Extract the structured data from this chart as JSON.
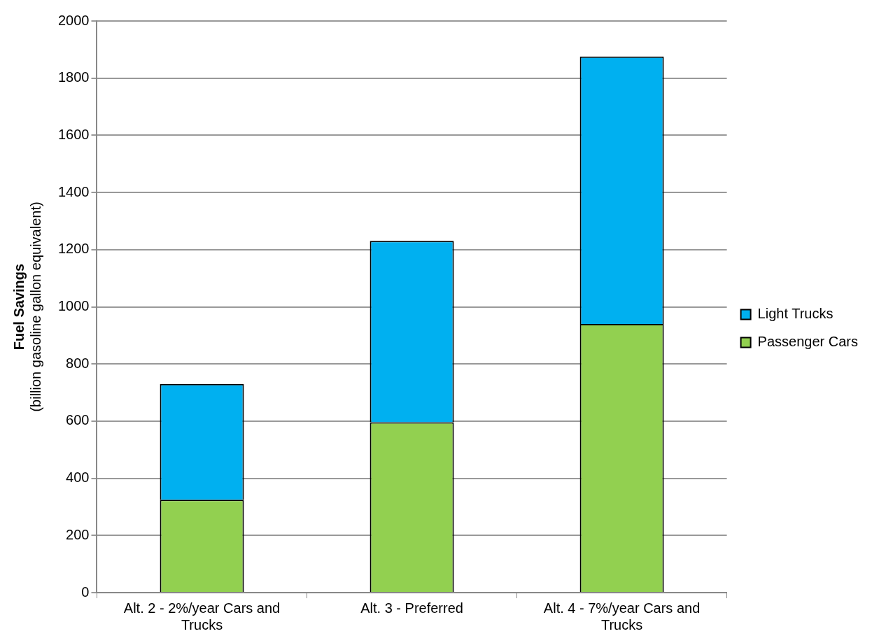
{
  "chart_data": {
    "type": "bar",
    "stacked": true,
    "ylabel": "Fuel Savings\n(billion gasoline gallon equivalent)",
    "categories": [
      "Alt. 2 - 2%/year Cars and Trucks",
      "Alt. 3 - Preferred",
      "Alt. 4 - 7%/year Cars and Trucks"
    ],
    "series": [
      {
        "name": "Passenger Cars",
        "color": "#92d050",
        "values": [
          325,
          596,
          940
        ]
      },
      {
        "name": "Light Trucks",
        "color": "#00b0f0",
        "values": [
          405,
          635,
          936
        ]
      }
    ],
    "ylim": [
      0,
      2000
    ],
    "yticks": [
      0,
      200,
      400,
      600,
      800,
      1000,
      1200,
      1400,
      1600,
      1800,
      2000
    ],
    "grid": "y",
    "legend": "right"
  }
}
